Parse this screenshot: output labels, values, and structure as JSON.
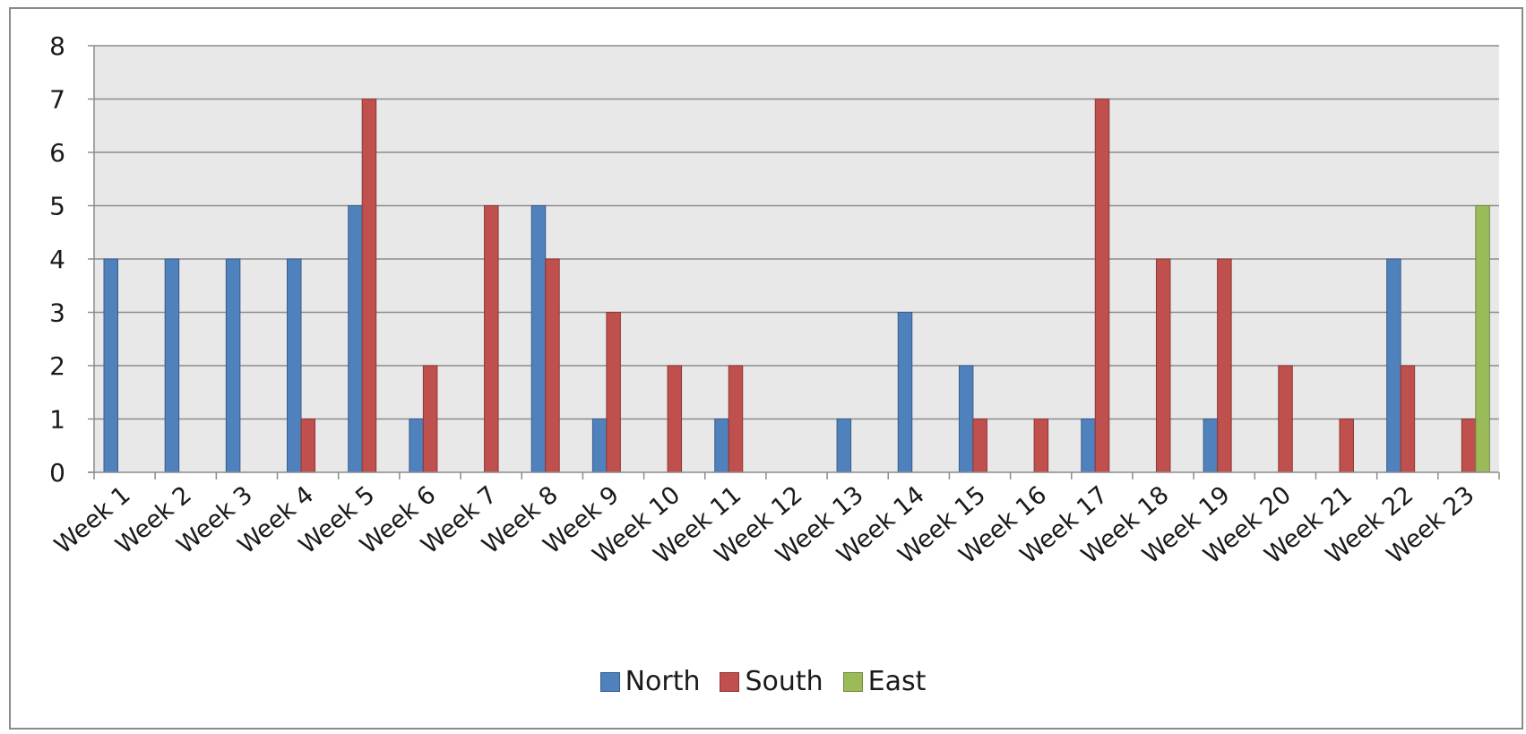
{
  "chart_data": {
    "type": "bar",
    "categories": [
      "Week 1",
      "Week 2",
      "Week 3",
      "Week 4",
      "Week 5",
      "Week 6",
      "Week 7",
      "Week 8",
      "Week 9",
      "Week 10",
      "Week 11",
      "Week 12",
      "Week 13",
      "Week 14",
      "Week 15",
      "Week 16",
      "Week 17",
      "Week 18",
      "Week 19",
      "Week 20",
      "Week 21",
      "Week 22",
      "Week 23"
    ],
    "series": [
      {
        "name": "North",
        "color": "#4f81bd",
        "border": "#385d8a",
        "values": [
          4,
          4,
          4,
          4,
          5,
          1,
          0,
          5,
          1,
          0,
          1,
          0,
          1,
          3,
          2,
          0,
          1,
          0,
          1,
          0,
          0,
          4,
          0
        ]
      },
      {
        "name": "South",
        "color": "#c0504d",
        "border": "#8c3836",
        "values": [
          0,
          0,
          0,
          1,
          7,
          2,
          5,
          4,
          3,
          2,
          2,
          0,
          0,
          0,
          1,
          1,
          7,
          4,
          4,
          2,
          1,
          2,
          1
        ]
      },
      {
        "name": "East",
        "color": "#9bbb59",
        "border": "#71893f",
        "values": [
          0,
          0,
          0,
          0,
          0,
          0,
          0,
          0,
          0,
          0,
          0,
          0,
          0,
          0,
          0,
          0,
          0,
          0,
          0,
          0,
          0,
          0,
          5
        ]
      }
    ],
    "ylim": [
      0,
      8
    ],
    "yticks": [
      0,
      1,
      2,
      3,
      4,
      5,
      6,
      7,
      8
    ],
    "grid": true,
    "plot_background": "#e8e8e8",
    "legend_position": "bottom",
    "title": "",
    "xlabel": "",
    "ylabel": ""
  }
}
